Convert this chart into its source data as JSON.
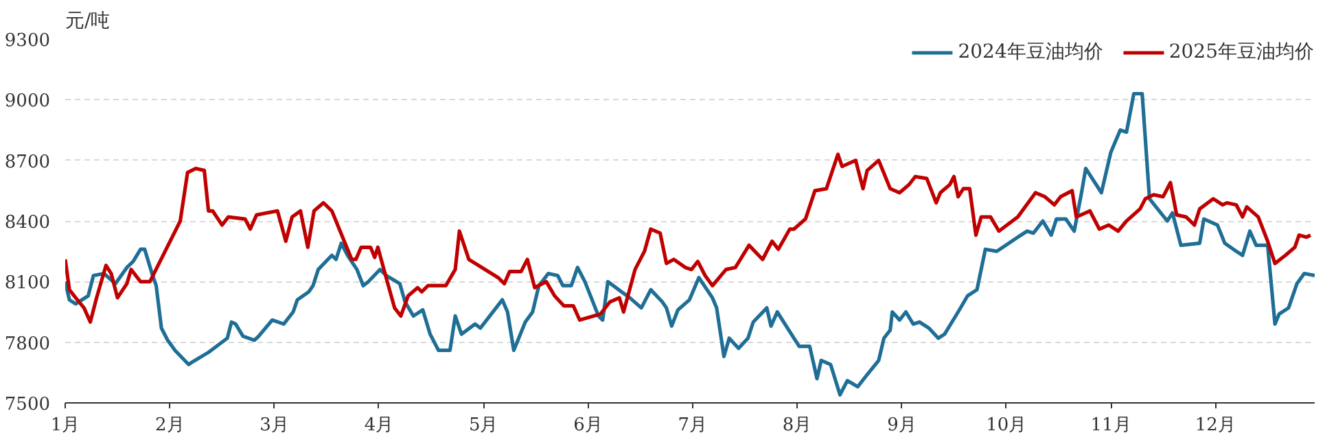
{
  "chart_data": {
    "type": "line",
    "ylabel": "元/吨",
    "xlim": [
      1,
      12.95
    ],
    "xticks": [
      {
        "value": 1,
        "label": "1月"
      },
      {
        "value": 2,
        "label": "2月"
      },
      {
        "value": 3,
        "label": "3月"
      },
      {
        "value": 4,
        "label": "4月"
      },
      {
        "value": 5,
        "label": "5月"
      },
      {
        "value": 6,
        "label": "6月"
      },
      {
        "value": 7,
        "label": "7月"
      },
      {
        "value": 8,
        "label": "8月"
      },
      {
        "value": 9,
        "label": "9月"
      },
      {
        "value": 10,
        "label": "10月"
      },
      {
        "value": 11,
        "label": "11月"
      },
      {
        "value": 12,
        "label": "12月"
      }
    ],
    "ylim": [
      7500,
      9300
    ],
    "yticks": [
      7500,
      7800,
      8100,
      8400,
      8700,
      9000,
      9300
    ],
    "grid": "y",
    "legend": "top right",
    "marker": "none",
    "line_style": "solid",
    "series": [
      {
        "name": "2024年豆油均价",
        "color": "#1f6e96",
        "x": [
          1.0,
          1.04,
          1.1,
          1.22,
          1.27,
          1.37,
          1.48,
          1.59,
          1.65,
          1.72,
          1.76,
          1.83,
          1.87,
          1.92,
          1.98,
          2.05,
          2.18,
          2.24,
          2.37,
          2.55,
          2.59,
          2.63,
          2.7,
          2.81,
          2.85,
          2.98,
          3.09,
          3.18,
          3.22,
          3.33,
          3.37,
          3.42,
          3.55,
          3.59,
          3.64,
          3.7,
          3.79,
          3.85,
          3.9,
          4.01,
          4.07,
          4.2,
          4.25,
          4.33,
          4.42,
          4.49,
          4.57,
          4.68,
          4.73,
          4.79,
          4.92,
          4.97,
          5.18,
          5.23,
          5.29,
          5.4,
          5.47,
          5.53,
          5.62,
          5.71,
          5.76,
          5.84,
          5.9,
          5.97,
          6.1,
          6.14,
          6.19,
          6.32,
          6.4,
          6.51,
          6.6,
          6.71,
          6.75,
          6.8,
          6.86,
          6.97,
          7.06,
          7.19,
          7.23,
          7.3,
          7.35,
          7.44,
          7.53,
          7.58,
          7.71,
          7.75,
          7.81,
          7.97,
          8.02,
          8.12,
          8.19,
          8.23,
          8.32,
          8.41,
          8.48,
          8.58,
          8.67,
          8.78,
          8.83,
          8.89,
          8.91,
          8.98,
          9.04,
          9.11,
          9.17,
          9.26,
          9.35,
          9.41,
          9.54,
          9.63,
          9.72,
          9.8,
          9.91,
          10.11,
          10.2,
          10.26,
          10.35,
          10.43,
          10.48,
          10.57,
          10.65,
          10.72,
          10.76,
          10.91,
          11.0,
          11.09,
          11.15,
          11.22,
          11.3,
          11.37,
          11.54,
          11.59,
          11.67,
          11.85,
          11.89,
          12.02,
          12.09,
          12.2,
          12.26,
          12.33,
          12.39,
          12.5,
          12.57,
          12.61,
          12.7,
          12.78,
          12.85,
          12.95
        ],
        "values": [
          8100,
          8010,
          7990,
          8030,
          8130,
          8140,
          8090,
          8170,
          8200,
          8260,
          8260,
          8140,
          8080,
          7870,
          7810,
          7760,
          7690,
          7710,
          7750,
          7820,
          7900,
          7890,
          7830,
          7810,
          7830,
          7910,
          7890,
          7950,
          8010,
          8050,
          8080,
          8160,
          8230,
          8210,
          8290,
          8230,
          8160,
          8080,
          8100,
          8160,
          8130,
          8090,
          8000,
          7930,
          7960,
          7840,
          7760,
          7760,
          7930,
          7840,
          7890,
          7870,
          8010,
          7950,
          7760,
          7900,
          7950,
          8080,
          8140,
          8130,
          8080,
          8080,
          8170,
          8100,
          7930,
          7910,
          8100,
          8050,
          8020,
          7970,
          8060,
          8000,
          7970,
          7880,
          7960,
          8010,
          8120,
          8020,
          7970,
          7730,
          7820,
          7770,
          7820,
          7900,
          7970,
          7880,
          7950,
          7820,
          7780,
          7780,
          7620,
          7710,
          7690,
          7540,
          7610,
          7580,
          7640,
          7710,
          7820,
          7860,
          7950,
          7910,
          7950,
          7890,
          7900,
          7870,
          7820,
          7840,
          7950,
          8030,
          8060,
          8260,
          8250,
          8320,
          8350,
          8340,
          8400,
          8330,
          8410,
          8410,
          8350,
          8540,
          8660,
          8540,
          8740,
          8850,
          8840,
          9030,
          9030,
          8510,
          8400,
          8440,
          8280,
          8290,
          8410,
          8380,
          8290,
          8250,
          8230,
          8350,
          8280,
          8280,
          7890,
          7940,
          7970,
          8090,
          8140,
          8130
        ]
      },
      {
        "name": "2025年豆油均价",
        "color": "#c00000",
        "x": [
          1.0,
          1.04,
          1.1,
          1.18,
          1.24,
          1.3,
          1.39,
          1.44,
          1.5,
          1.59,
          1.63,
          1.72,
          1.81,
          2.1,
          2.17,
          2.25,
          2.33,
          2.37,
          2.41,
          2.5,
          2.56,
          2.72,
          2.77,
          2.83,
          3.03,
          3.11,
          3.17,
          3.25,
          3.32,
          3.38,
          3.47,
          3.55,
          3.74,
          3.78,
          3.83,
          3.92,
          3.96,
          3.99,
          4.08,
          4.15,
          4.21,
          4.28,
          4.37,
          4.41,
          4.47,
          4.58,
          4.64,
          4.73,
          4.77,
          4.86,
          5.14,
          5.2,
          5.25,
          5.36,
          5.42,
          5.49,
          5.6,
          5.68,
          5.77,
          5.86,
          5.92,
          6.12,
          6.21,
          6.3,
          6.34,
          6.45,
          6.54,
          6.6,
          6.69,
          6.75,
          6.82,
          6.93,
          6.99,
          7.05,
          7.12,
          7.19,
          7.32,
          7.41,
          7.54,
          7.67,
          7.76,
          7.82,
          7.93,
          7.97,
          8.08,
          8.17,
          8.28,
          8.39,
          8.43,
          8.56,
          8.63,
          8.67,
          8.78,
          8.89,
          8.98,
          9.07,
          9.13,
          9.24,
          9.33,
          9.37,
          9.46,
          9.5,
          9.54,
          9.59,
          9.65,
          9.71,
          9.76,
          9.85,
          9.93,
          10.11,
          10.28,
          10.37,
          10.46,
          10.52,
          10.63,
          10.67,
          10.8,
          10.89,
          10.98,
          11.07,
          11.15,
          11.28,
          11.33,
          11.41,
          11.5,
          11.57,
          11.63,
          11.72,
          11.8,
          11.85,
          11.98,
          12.07,
          12.11,
          12.2,
          12.26,
          12.3,
          12.41,
          12.5,
          12.57,
          12.67,
          12.76,
          12.8,
          12.87,
          12.91
        ],
        "values": [
          8210,
          8060,
          8020,
          7970,
          7900,
          8020,
          8180,
          8140,
          8020,
          8090,
          8160,
          8100,
          8100,
          8400,
          8640,
          8660,
          8650,
          8450,
          8450,
          8380,
          8420,
          8410,
          8360,
          8430,
          8450,
          8300,
          8420,
          8450,
          8270,
          8450,
          8490,
          8450,
          8210,
          8210,
          8270,
          8270,
          8220,
          8270,
          8100,
          7970,
          7930,
          8030,
          8070,
          8050,
          8080,
          8080,
          8080,
          8160,
          8350,
          8210,
          8120,
          8090,
          8150,
          8150,
          8210,
          8070,
          8100,
          8030,
          7980,
          7980,
          7910,
          7940,
          8000,
          8020,
          7950,
          8160,
          8250,
          8360,
          8340,
          8190,
          8210,
          8170,
          8160,
          8200,
          8130,
          8080,
          8160,
          8170,
          8280,
          8210,
          8300,
          8260,
          8360,
          8360,
          8410,
          8550,
          8560,
          8730,
          8670,
          8700,
          8560,
          8650,
          8700,
          8560,
          8540,
          8580,
          8620,
          8610,
          8490,
          8540,
          8580,
          8620,
          8520,
          8560,
          8560,
          8330,
          8420,
          8420,
          8350,
          8420,
          8540,
          8520,
          8480,
          8520,
          8550,
          8420,
          8450,
          8360,
          8380,
          8350,
          8400,
          8460,
          8510,
          8530,
          8520,
          8590,
          8430,
          8420,
          8380,
          8460,
          8510,
          8480,
          8490,
          8480,
          8420,
          8470,
          8420,
          8300,
          8190,
          8230,
          8270,
          8330,
          8320,
          8330
        ]
      }
    ]
  }
}
